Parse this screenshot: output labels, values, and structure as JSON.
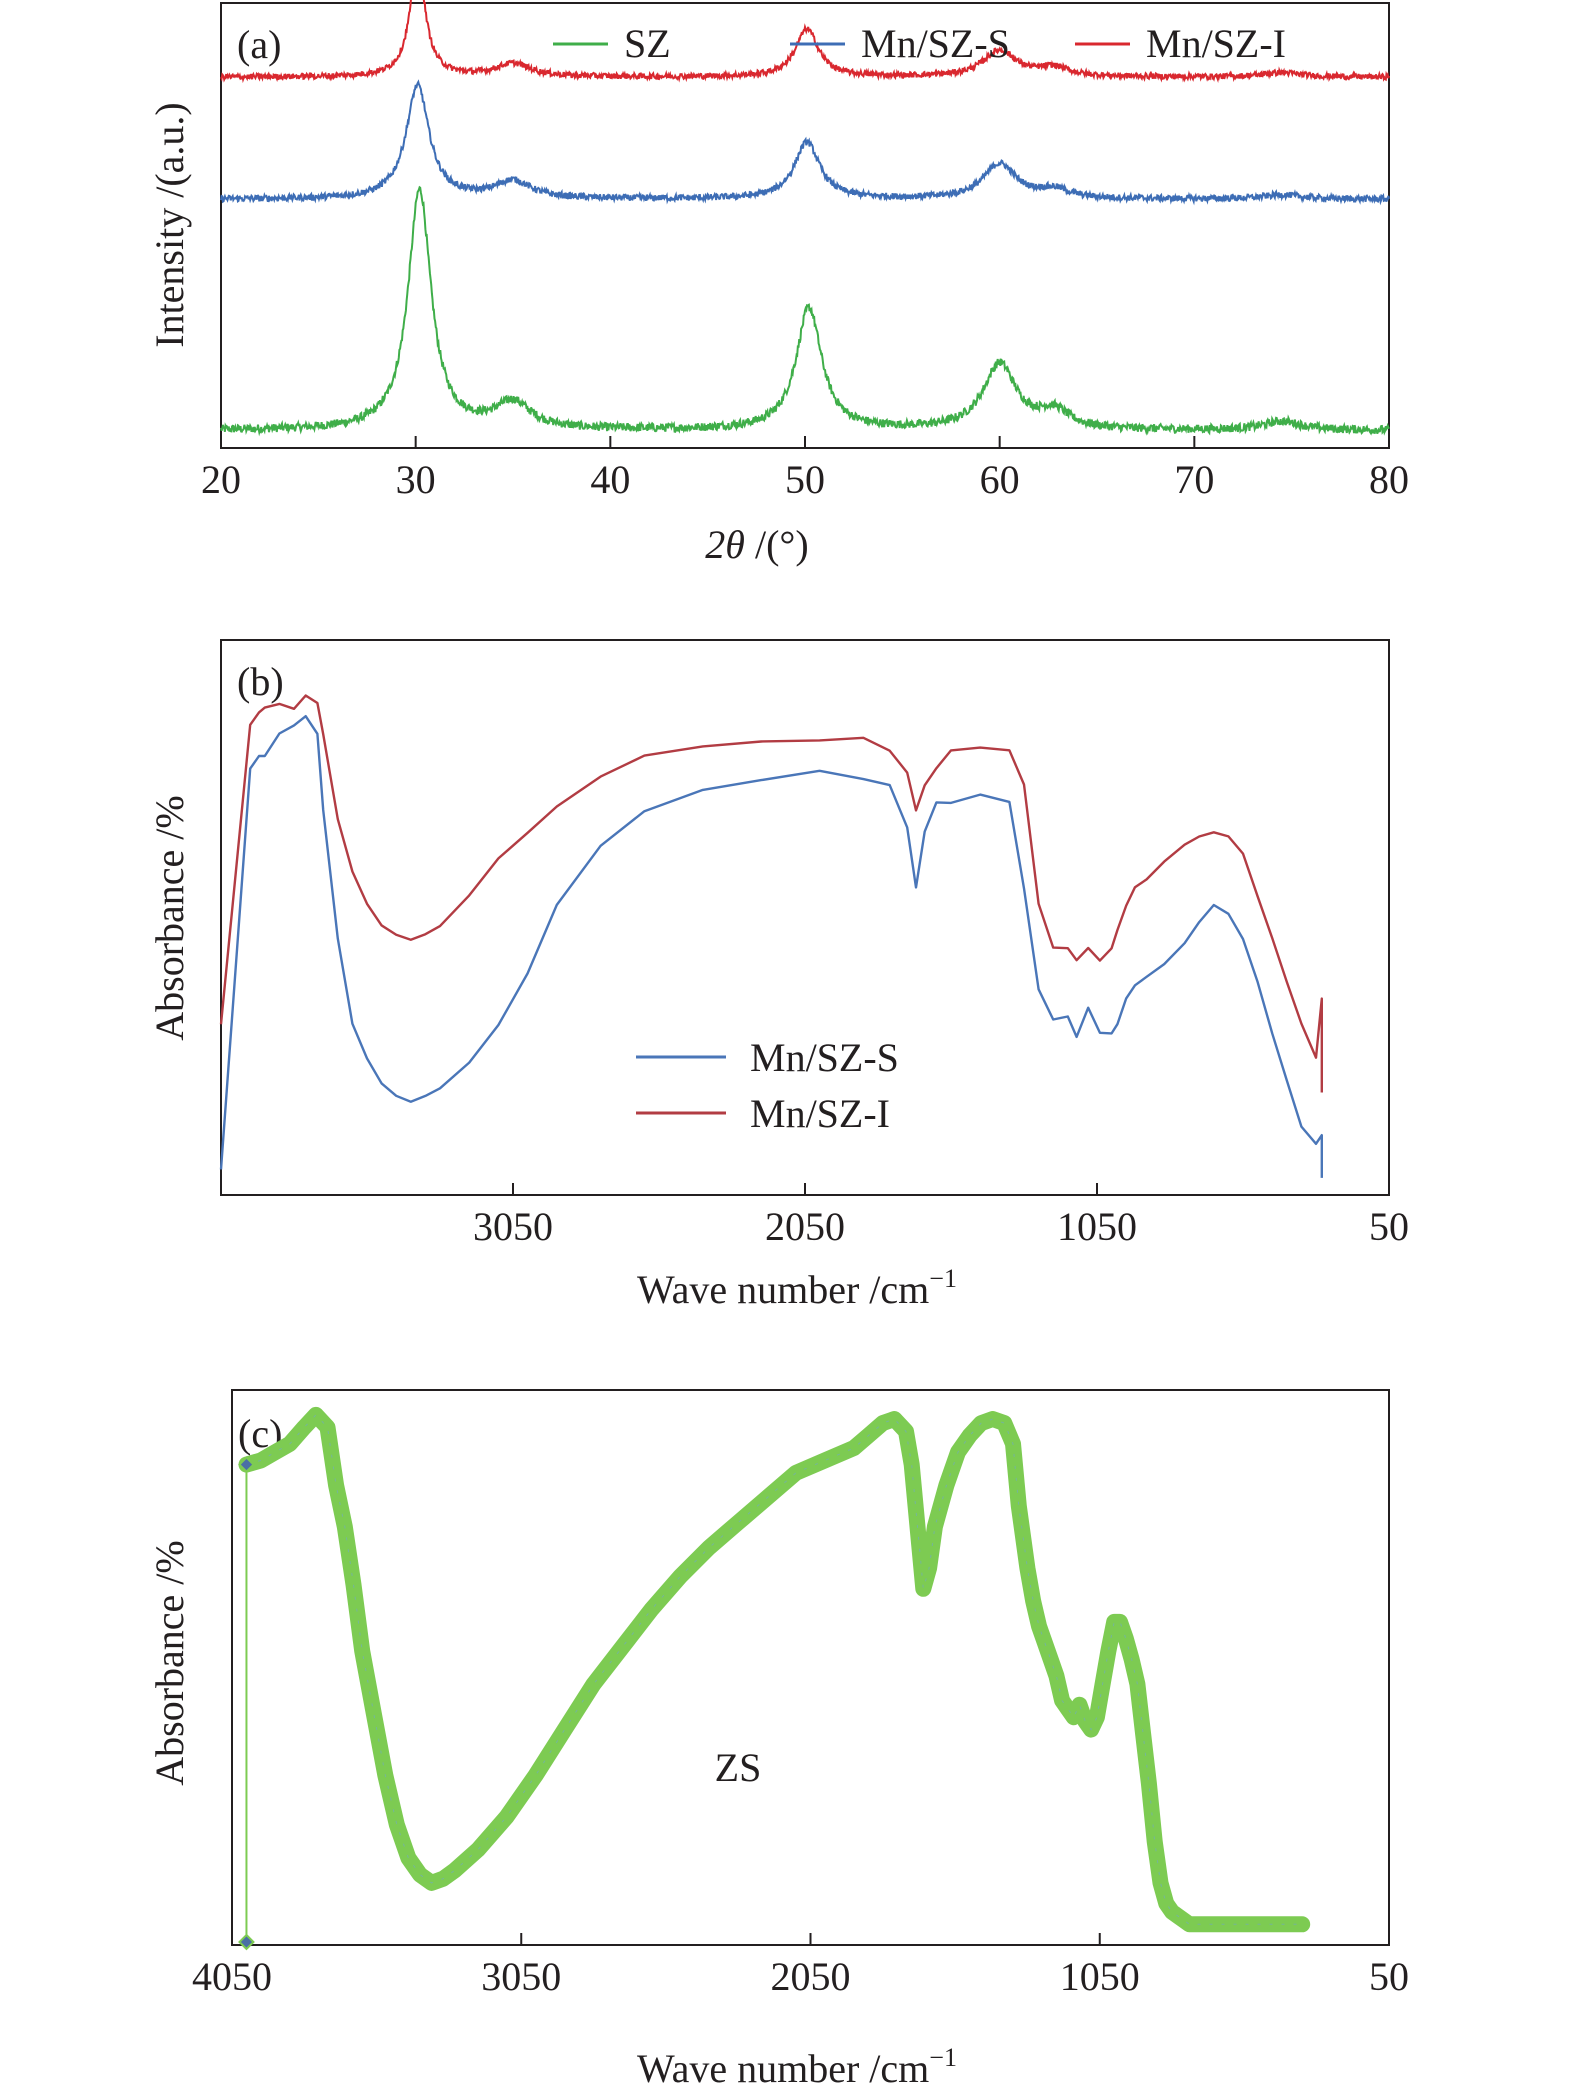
{
  "chart_data": [
    {
      "panel": "(a)",
      "type": "line",
      "title": "",
      "xlabel": "2θ /(°)",
      "xlabel_parts": {
        "italic": "2θ",
        "rest": " /(°)"
      },
      "ylabel": "Intensity /(a.u.)",
      "xlim": [
        20,
        80
      ],
      "x_ticks": [
        20,
        30,
        40,
        50,
        60,
        70,
        80
      ],
      "y_ticks": [],
      "legend_position": "top-right",
      "series": [
        {
          "name": "SZ",
          "color": "#3fae49",
          "offset": 0,
          "baseline": 2,
          "noise": 1.2,
          "peaks": [
            [
              30.2,
              55,
              0.9
            ],
            [
              35.0,
              6,
              1.4
            ],
            [
              50.2,
              28,
              1.0
            ],
            [
              60.0,
              15,
              1.3
            ],
            [
              62.8,
              4,
              1.2
            ],
            [
              74.5,
              2,
              1.5
            ]
          ]
        },
        {
          "name": "Mn/SZ-S",
          "color": "#3d6db5",
          "offset": 54,
          "baseline": 1,
          "noise": 0.9,
          "peaks": [
            [
              30.1,
              26,
              0.9
            ],
            [
              35.0,
              4,
              1.4
            ],
            [
              50.1,
              13,
              1.0
            ],
            [
              60.0,
              8,
              1.3
            ],
            [
              62.8,
              2,
              1.2
            ],
            [
              74.5,
              1,
              1.5
            ]
          ]
        },
        {
          "name": "Mn/SZ-I",
          "color": "#d9282f",
          "offset": 82,
          "baseline": 1,
          "noise": 0.8,
          "peaks": [
            [
              30.1,
              26,
              0.6
            ],
            [
              35.0,
              3,
              1.4
            ],
            [
              50.1,
              11,
              0.9
            ],
            [
              60.0,
              6,
              1.3
            ],
            [
              62.8,
              2,
              1.2
            ],
            [
              74.5,
              1,
              1.5
            ]
          ]
        }
      ]
    },
    {
      "panel": "(b)",
      "type": "line",
      "title": "",
      "xlabel": "Wave number /cm⁻¹",
      "xlabel_parts": {
        "text": "Wave number /cm",
        "sup": "−1"
      },
      "ylabel": "Absorbance /%",
      "xlim": [
        4050,
        50
      ],
      "x_ticks": [
        3050,
        2050,
        1050,
        50
      ],
      "y_ticks": [],
      "legend_position": "bottom-center",
      "series": [
        {
          "name": "Mn/SZ-S",
          "color": "#4a76b8",
          "x": [
            3950,
            3920,
            3900,
            3850,
            3800,
            3760,
            3720,
            3700,
            3650,
            3600,
            3550,
            3500,
            3450,
            3400,
            3350,
            3300,
            3200,
            3100,
            3000,
            2900,
            2750,
            2600,
            2400,
            2200,
            2000,
            1850,
            1760,
            1700,
            1670,
            1640,
            1600,
            1550,
            1450,
            1350,
            1300,
            1250,
            1200,
            1150,
            1120,
            1080,
            1040,
            1000,
            980,
            950,
            920,
            880,
            820,
            750,
            700,
            650,
            600,
            550,
            500,
            450,
            400,
            350,
            300
          ],
          "y": [
            70,
            73,
            73,
            78,
            80,
            82,
            78,
            60,
            30,
            10,
            2,
            -4,
            -7,
            -8,
            -7,
            -5,
            1,
            10,
            22,
            38,
            52,
            60,
            65,
            67,
            69,
            68,
            66,
            56,
            42,
            55,
            62,
            62,
            64,
            62,
            42,
            18,
            11,
            12,
            7,
            14,
            8,
            8,
            10,
            16,
            19,
            21,
            24,
            29,
            34,
            38,
            36,
            30,
            20,
            8,
            -3,
            -14,
            -18
          ]
        },
        {
          "name": "Mn/SZ-I",
          "color": "#b23c43",
          "x": [
            3950,
            3920,
            3900,
            3850,
            3800,
            3760,
            3720,
            3700,
            3650,
            3600,
            3550,
            3500,
            3450,
            3400,
            3350,
            3300,
            3200,
            3100,
            3000,
            2900,
            2750,
            2600,
            2400,
            2200,
            2000,
            1850,
            1760,
            1700,
            1670,
            1640,
            1600,
            1550,
            1450,
            1350,
            1300,
            1250,
            1200,
            1150,
            1120,
            1080,
            1040,
            1000,
            980,
            950,
            920,
            880,
            820,
            750,
            700,
            650,
            600,
            550,
            500,
            450,
            400,
            350,
            300
          ],
          "y": [
            80,
            83,
            84,
            85,
            84,
            87,
            85,
            78,
            58,
            46,
            38,
            33,
            31,
            30,
            31,
            33,
            40,
            49,
            55,
            61,
            68,
            73,
            75,
            76,
            77,
            77,
            74,
            69,
            60,
            66,
            70,
            74,
            75,
            74,
            66,
            38,
            28,
            28,
            25,
            28,
            25,
            28,
            32,
            38,
            42,
            44,
            48,
            52,
            54,
            55,
            54,
            50,
            40,
            30,
            20,
            10,
            2
          ]
        }
      ]
    },
    {
      "panel": "(c)",
      "type": "line",
      "title": "",
      "xlabel": "Wave number /cm⁻¹",
      "xlabel_parts": {
        "text": "Wave number /cm",
        "sup": "−1"
      },
      "ylabel": "Absorbance /%",
      "xlim": [
        4050,
        50
      ],
      "x_ticks": [
        4050,
        3050,
        2050,
        1050,
        50
      ],
      "y_ticks": [],
      "annotation": "ZS",
      "series": [
        {
          "name": "ZS",
          "color": "#7dcb52",
          "marker_color": "#6fa8c9",
          "x": [
            4000,
            3950,
            3900,
            3850,
            3800,
            3760,
            3720,
            3690,
            3660,
            3630,
            3600,
            3560,
            3520,
            3480,
            3440,
            3400,
            3360,
            3320,
            3280,
            3200,
            3100,
            3000,
            2900,
            2800,
            2700,
            2600,
            2500,
            2400,
            2300,
            2200,
            2100,
            2000,
            1900,
            1850,
            1800,
            1760,
            1720,
            1700,
            1680,
            1660,
            1640,
            1620,
            1580,
            1540,
            1500,
            1460,
            1420,
            1380,
            1350,
            1330,
            1300,
            1280,
            1260,
            1240,
            1220,
            1200,
            1180,
            1160,
            1140,
            1120,
            1100,
            1080,
            1060,
            1040,
            1020,
            1000,
            980,
            960,
            940,
            920,
            900,
            880,
            860,
            840,
            820,
            800,
            780,
            760,
            740,
            720,
            700,
            680,
            660,
            640,
            620,
            600,
            550,
            500,
            450,
            400,
            350
          ],
          "y": [
            65,
            66,
            68,
            70,
            74,
            77,
            74,
            60,
            50,
            36,
            20,
            5,
            -10,
            -22,
            -30,
            -34,
            -36,
            -35,
            -33,
            -28,
            -20,
            -10,
            1,
            12,
            21,
            30,
            38,
            45,
            51,
            57,
            63,
            66,
            69,
            72,
            75,
            76,
            73,
            65,
            50,
            35,
            40,
            50,
            60,
            68,
            72,
            75,
            76,
            75,
            70,
            55,
            40,
            32,
            26,
            22,
            18,
            14,
            8,
            6,
            4,
            7,
            3,
            1,
            4,
            12,
            20,
            27,
            27,
            23,
            18,
            12,
            0,
            -12,
            -26,
            -36,
            -41,
            -43,
            -44,
            -45,
            -46,
            -46,
            -46,
            -46,
            -46,
            -46,
            -46,
            -46,
            -46,
            -46,
            -46,
            -46,
            -46
          ]
        }
      ]
    }
  ]
}
